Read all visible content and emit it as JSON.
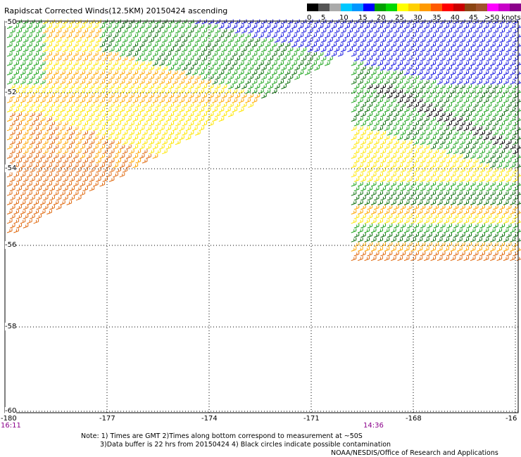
{
  "title": "Rapidscat Corrected Winds(12.5KM) 20150424 ascending",
  "legend": {
    "ticks": [
      "0",
      "5",
      "10",
      "15",
      "20",
      "25",
      "30",
      "35",
      "40",
      "45",
      ">50 knots"
    ],
    "colors": [
      "#000000",
      "#555555",
      "#aaaaaa",
      "#00c8ff",
      "#0096ff",
      "#0000ff",
      "#00a000",
      "#00d800",
      "#ffff00",
      "#ffd000",
      "#ff9a00",
      "#ff5a00",
      "#ff0000",
      "#c80000",
      "#8b4513",
      "#a0522d",
      "#ff00ff",
      "#c800c8",
      "#8b008b"
    ]
  },
  "map": {
    "lat_labels": [
      "-50",
      "-52",
      "-54",
      "-56",
      "-58",
      "-60"
    ],
    "lon_labels": [
      "-180",
      "-177",
      "-174",
      "-171",
      "-168",
      "-16"
    ],
    "barb_colors": {
      "orange": "#e06a10",
      "amber": "#ffa500",
      "yellow": "#ffe600",
      "green": "#1fa51f",
      "darkgreen": "#0a6e0a",
      "blue": "#1414e0",
      "black": "#000000"
    }
  },
  "times": {
    "start": "16:11",
    "pass": "14:36"
  },
  "notes": {
    "line1": "Note: 1) Times are GMT 2)Times along bottom correspond to measurement at ~50S",
    "line2": "3)Data buffer is 22 hrs from 20150424 4) Black circles indicate possible contamination",
    "credit": "NOAA/NESDIS/Office of Research and Applications"
  }
}
